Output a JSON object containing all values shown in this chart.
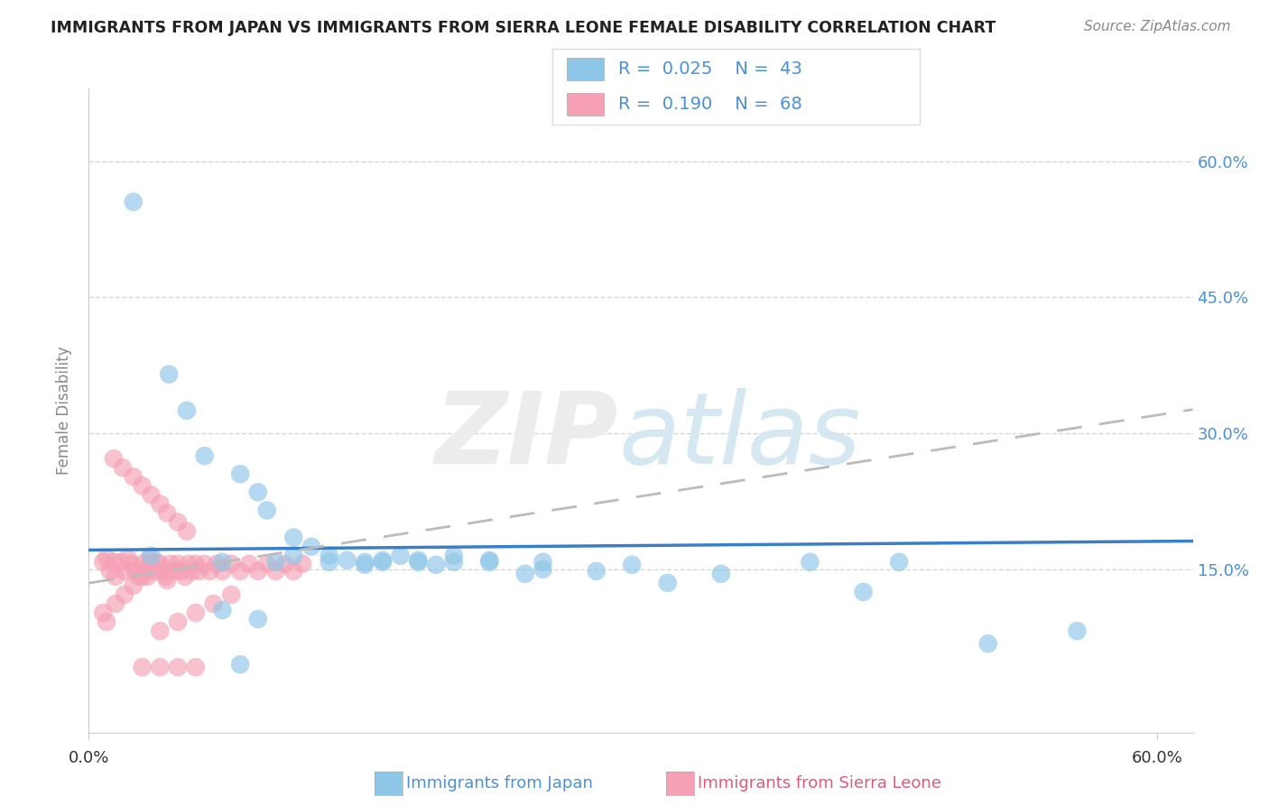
{
  "title": "IMMIGRANTS FROM JAPAN VS IMMIGRANTS FROM SIERRA LEONE FEMALE DISABILITY CORRELATION CHART",
  "source": "Source: ZipAtlas.com",
  "ylabel": "Female Disability",
  "xlim": [
    0.0,
    0.62
  ],
  "ylim": [
    -0.03,
    0.68
  ],
  "yticks": [
    0.15,
    0.3,
    0.45,
    0.6
  ],
  "ytick_labels": [
    "15.0%",
    "30.0%",
    "45.0%",
    "60.0%"
  ],
  "legend_japan_R": "0.025",
  "legend_japan_N": "43",
  "legend_sl_R": "0.190",
  "legend_sl_N": "68",
  "japan_color": "#8ec6e8",
  "sl_color": "#f5a0b5",
  "japan_line_color": "#3a7ec8",
  "sl_line_color": "#e8607a",
  "japan_x": [
    0.025,
    0.045,
    0.055,
    0.065,
    0.085,
    0.095,
    0.1,
    0.115,
    0.125,
    0.135,
    0.145,
    0.155,
    0.165,
    0.175,
    0.185,
    0.195,
    0.205,
    0.225,
    0.245,
    0.255,
    0.285,
    0.305,
    0.325,
    0.355,
    0.405,
    0.435,
    0.455,
    0.505,
    0.555,
    0.035,
    0.075,
    0.105,
    0.135,
    0.155,
    0.185,
    0.205,
    0.225,
    0.255,
    0.075,
    0.095,
    0.115,
    0.165,
    0.085
  ],
  "japan_y": [
    0.555,
    0.365,
    0.325,
    0.275,
    0.255,
    0.235,
    0.215,
    0.185,
    0.175,
    0.165,
    0.16,
    0.155,
    0.16,
    0.165,
    0.16,
    0.155,
    0.165,
    0.16,
    0.145,
    0.15,
    0.148,
    0.155,
    0.135,
    0.145,
    0.158,
    0.125,
    0.158,
    0.068,
    0.082,
    0.165,
    0.158,
    0.158,
    0.158,
    0.158,
    0.158,
    0.158,
    0.158,
    0.158,
    0.105,
    0.095,
    0.165,
    0.158,
    0.045
  ],
  "sl_x": [
    0.008,
    0.01,
    0.012,
    0.014,
    0.015,
    0.018,
    0.02,
    0.022,
    0.024,
    0.026,
    0.028,
    0.03,
    0.032,
    0.033,
    0.034,
    0.035,
    0.037,
    0.038,
    0.04,
    0.042,
    0.043,
    0.044,
    0.046,
    0.048,
    0.05,
    0.052,
    0.054,
    0.056,
    0.058,
    0.06,
    0.062,
    0.065,
    0.068,
    0.072,
    0.075,
    0.08,
    0.085,
    0.09,
    0.095,
    0.1,
    0.105,
    0.11,
    0.115,
    0.12,
    0.014,
    0.019,
    0.025,
    0.03,
    0.035,
    0.04,
    0.044,
    0.05,
    0.055,
    0.008,
    0.01,
    0.015,
    0.02,
    0.025,
    0.03,
    0.04,
    0.05,
    0.06,
    0.07,
    0.08,
    0.03,
    0.04,
    0.05,
    0.06
  ],
  "sl_y": [
    0.158,
    0.162,
    0.148,
    0.158,
    0.142,
    0.158,
    0.148,
    0.162,
    0.156,
    0.148,
    0.142,
    0.156,
    0.148,
    0.142,
    0.162,
    0.156,
    0.148,
    0.158,
    0.156,
    0.148,
    0.142,
    0.138,
    0.156,
    0.148,
    0.156,
    0.148,
    0.142,
    0.156,
    0.148,
    0.156,
    0.148,
    0.156,
    0.148,
    0.156,
    0.148,
    0.156,
    0.148,
    0.156,
    0.148,
    0.156,
    0.148,
    0.156,
    0.148,
    0.156,
    0.272,
    0.262,
    0.252,
    0.242,
    0.232,
    0.222,
    0.212,
    0.202,
    0.192,
    0.102,
    0.092,
    0.112,
    0.122,
    0.132,
    0.142,
    0.082,
    0.092,
    0.102,
    0.112,
    0.122,
    0.042,
    0.042,
    0.042,
    0.042
  ]
}
